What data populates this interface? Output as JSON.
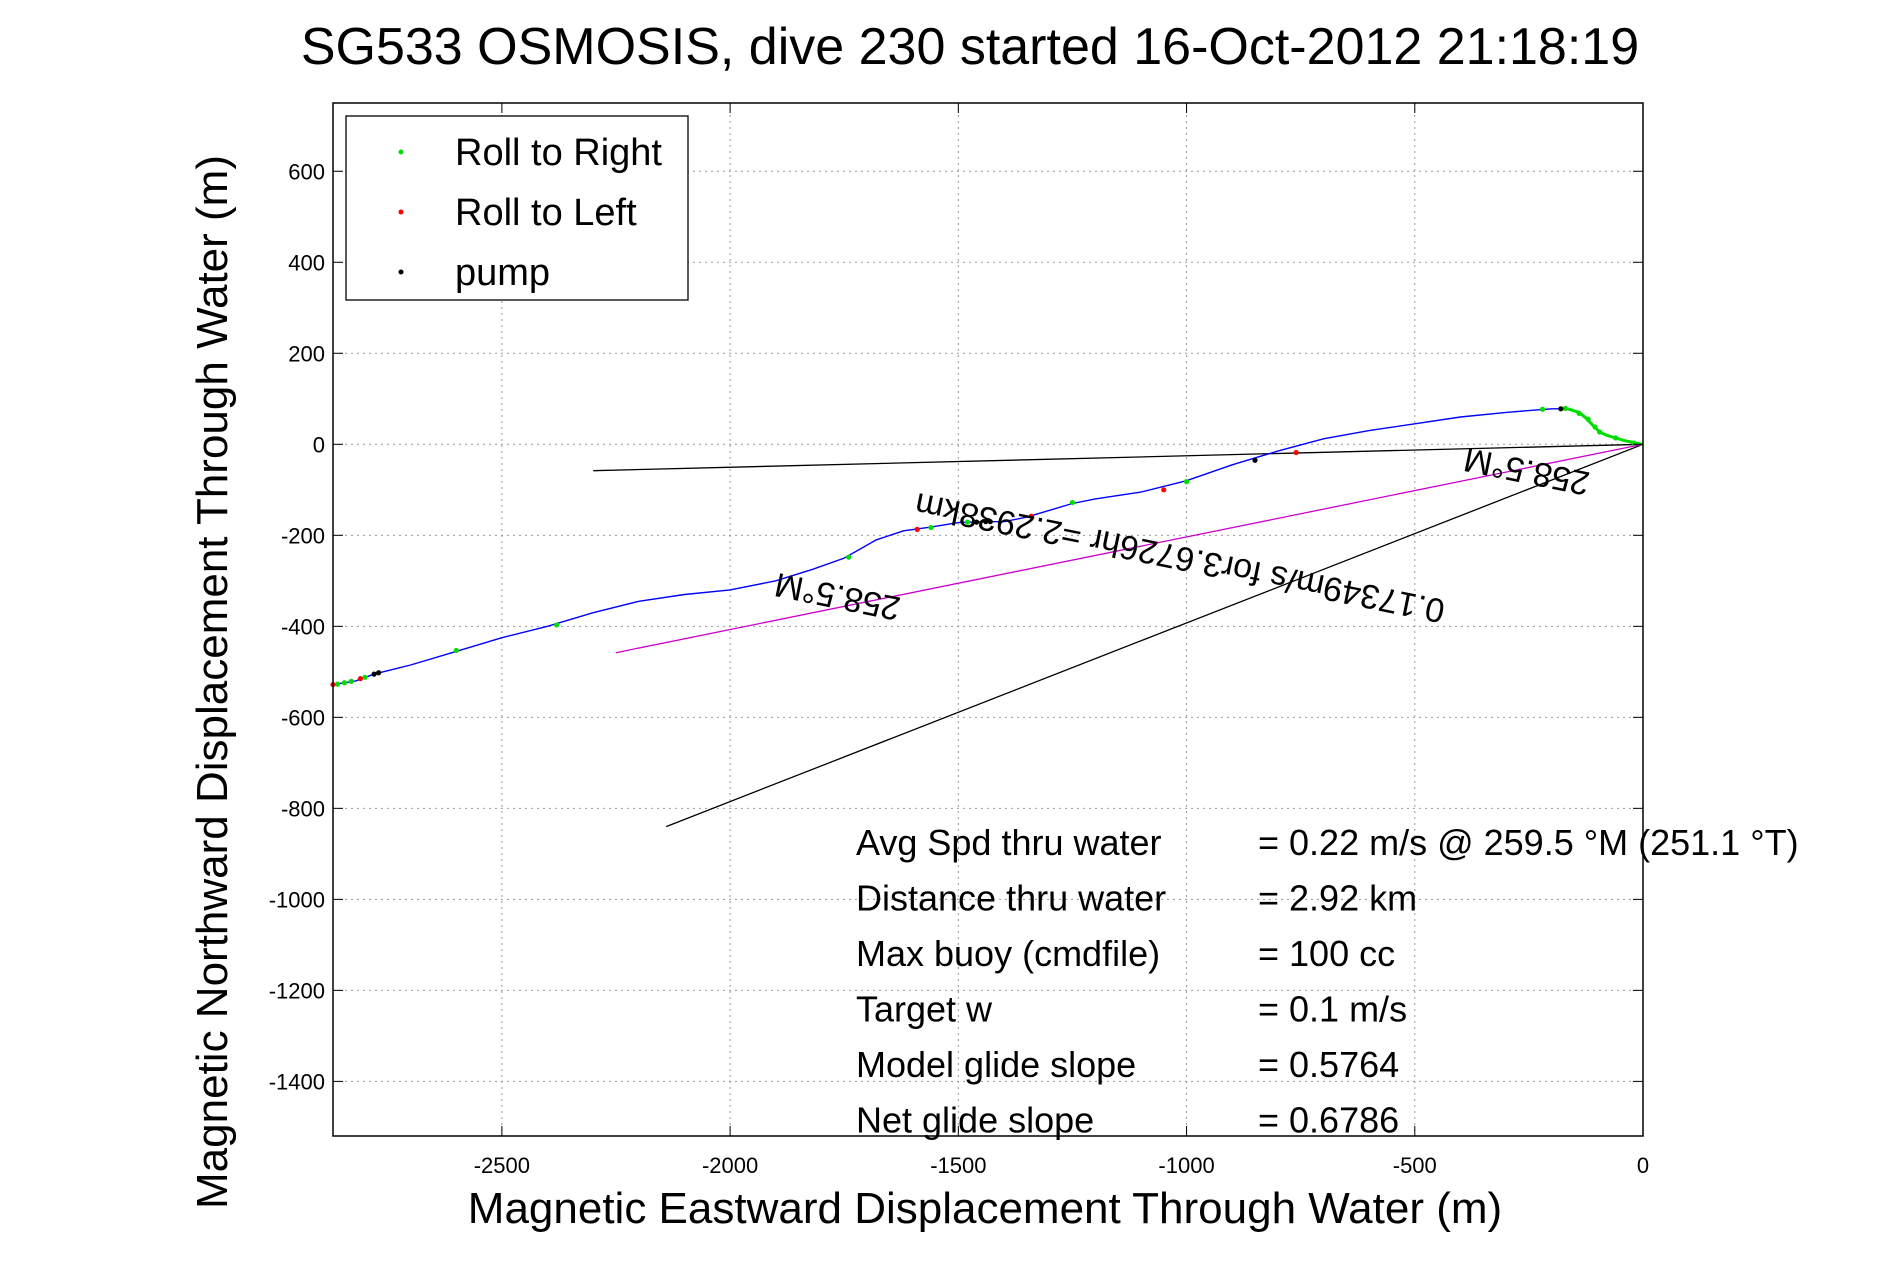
{
  "chart_data": {
    "type": "line",
    "title": "SG533 OSMOSIS, dive 230 started 16-Oct-2012 21:18:19",
    "xlabel": "Magnetic Eastward Displacement Through Water (m)",
    "ylabel": "Magnetic Northward Displacement Through Water (m)",
    "xlim": [
      -2870,
      0
    ],
    "ylim": [
      -1520,
      750
    ],
    "xticks": [
      -2500,
      -2000,
      -1500,
      -1000,
      -500,
      0
    ],
    "yticks": [
      600,
      400,
      200,
      0,
      -200,
      -400,
      -600,
      -800,
      -1000,
      -1200,
      -1400
    ],
    "grid": true,
    "legend": {
      "position": "top-left",
      "entries": [
        {
          "label": "Roll to Right",
          "color": "#00dd00"
        },
        {
          "label": "Roll to Left",
          "color": "#ff0000"
        },
        {
          "label": "pump",
          "color": "#000000"
        }
      ]
    },
    "track": {
      "color": "#0000ff",
      "points": [
        [
          0,
          0
        ],
        [
          -40,
          8
        ],
        [
          -60,
          14
        ],
        [
          -80,
          20
        ],
        [
          -95,
          27
        ],
        [
          -110,
          42
        ],
        [
          -125,
          58
        ],
        [
          -140,
          70
        ],
        [
          -165,
          78
        ],
        [
          -200,
          78
        ],
        [
          -240,
          75
        ],
        [
          -300,
          70
        ],
        [
          -400,
          60
        ],
        [
          -500,
          45
        ],
        [
          -600,
          30
        ],
        [
          -700,
          12
        ],
        [
          -800,
          -15
        ],
        [
          -900,
          -45
        ],
        [
          -1000,
          -80
        ],
        [
          -1100,
          -105
        ],
        [
          -1200,
          -120
        ],
        [
          -1250,
          -130
        ],
        [
          -1300,
          -145
        ],
        [
          -1350,
          -160
        ],
        [
          -1400,
          -170
        ],
        [
          -1450,
          -170
        ],
        [
          -1500,
          -172
        ],
        [
          -1560,
          -182
        ],
        [
          -1620,
          -190
        ],
        [
          -1680,
          -210
        ],
        [
          -1750,
          -250
        ],
        [
          -1820,
          -275
        ],
        [
          -1900,
          -300
        ],
        [
          -2000,
          -320
        ],
        [
          -2100,
          -330
        ],
        [
          -2200,
          -345
        ],
        [
          -2300,
          -370
        ],
        [
          -2400,
          -400
        ],
        [
          -2500,
          -425
        ],
        [
          -2600,
          -455
        ],
        [
          -2700,
          -485
        ],
        [
          -2780,
          -505
        ],
        [
          -2820,
          -520
        ],
        [
          -2870,
          -528
        ]
      ]
    },
    "roll_right_points": [
      [
        -20,
        3
      ],
      [
        -60,
        14
      ],
      [
        -95,
        27
      ],
      [
        -105,
        38
      ],
      [
        -120,
        55
      ],
      [
        -140,
        68
      ],
      [
        -170,
        79
      ],
      [
        -220,
        77
      ],
      [
        -1250,
        -128
      ],
      [
        -1560,
        -183
      ],
      [
        -1740,
        -248
      ],
      [
        -2380,
        -397
      ],
      [
        -2600,
        -453
      ],
      [
        -2800,
        -512
      ],
      [
        -2830,
        -521
      ],
      [
        -2860,
        -527
      ],
      [
        -2845,
        -524
      ],
      [
        -1480,
        -171
      ],
      [
        -1000,
        -82
      ]
    ],
    "roll_left_points": [
      [
        -1050,
        -100
      ],
      [
        -1340,
        -158
      ],
      [
        -1590,
        -187
      ],
      [
        -2870,
        -528
      ],
      [
        -2810,
        -515
      ],
      [
        -760,
        -18
      ]
    ],
    "pump_points": [
      [
        -1430,
        -170
      ],
      [
        -1460,
        -171
      ],
      [
        -1440,
        -170
      ],
      [
        -2780,
        -505
      ],
      [
        -2770,
        -502
      ],
      [
        -850,
        -35
      ],
      [
        -180,
        78
      ]
    ],
    "heading_lines": [
      {
        "color": "#000000",
        "points": [
          [
            0,
            0
          ],
          [
            -2300,
            -58
          ]
        ]
      },
      {
        "color": "#000000",
        "points": [
          [
            0,
            0
          ],
          [
            -2140,
            -840
          ]
        ]
      },
      {
        "color": "#cc00cc",
        "points": [
          [
            0,
            0
          ],
          [
            -2250,
            -458
          ]
        ]
      }
    ],
    "rotated_labels": [
      {
        "text": "258.5°M",
        "x": -1760,
        "y": -310,
        "angle_deg": 191.5
      },
      {
        "text": "258.5°M",
        "x": -250,
        "y": -35,
        "angle_deg": 191.5
      },
      {
        "text": "0.17349m/s for3.6726hr =2.2938km",
        "x": -1010,
        "y": -225,
        "angle_deg": 191.5
      }
    ],
    "annotations": [
      {
        "label": "Avg Spd thru water",
        "value": "=  0.22 m/s @ 259.5 °M (251.1 °T)"
      },
      {
        "label": "Distance thru water",
        "value": "=  2.92 km"
      },
      {
        "label": "Max buoy (cmdfile)",
        "value": "= 100 cc"
      },
      {
        "label": "Target w",
        "value": "= 0.1 m/s"
      },
      {
        "label": "Model glide slope",
        "value": "= 0.5764"
      },
      {
        "label": "Net glide slope",
        "value": "= 0.6786"
      }
    ]
  }
}
